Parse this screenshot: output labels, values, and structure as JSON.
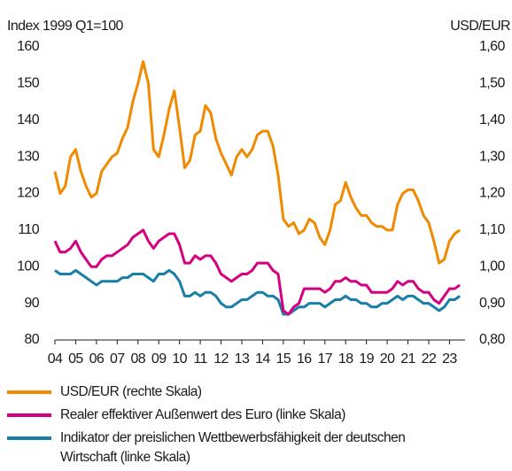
{
  "chart_data": {
    "type": "line",
    "y_label": "Index 1999 Q1=100",
    "y2_label": "USD/EUR",
    "x": [
      2004,
      2004.25,
      2004.5,
      2004.75,
      2005,
      2005.25,
      2005.5,
      2005.75,
      2006,
      2006.25,
      2006.5,
      2006.75,
      2007,
      2007.25,
      2007.5,
      2007.75,
      2008,
      2008.25,
      2008.5,
      2008.75,
      2009,
      2009.25,
      2009.5,
      2009.75,
      2010,
      2010.25,
      2010.5,
      2010.75,
      2011,
      2011.25,
      2011.5,
      2011.75,
      2012,
      2012.25,
      2012.5,
      2012.75,
      2013,
      2013.25,
      2013.5,
      2013.75,
      2014,
      2014.25,
      2014.5,
      2014.75,
      2015,
      2015.25,
      2015.5,
      2015.75,
      2016,
      2016.25,
      2016.5,
      2016.75,
      2017,
      2017.25,
      2017.5,
      2017.75,
      2018,
      2018.25,
      2018.5,
      2018.75,
      2019,
      2019.25,
      2019.5,
      2019.75,
      2020,
      2020.25,
      2020.5,
      2020.75,
      2021,
      2021.25,
      2021.5,
      2021.75,
      2022,
      2022.25,
      2022.5,
      2022.75,
      2023,
      2023.25,
      2023.5
    ],
    "series": [
      {
        "name": "USD/EUR (rechte Skala)",
        "color": "#f08a00",
        "axis": "y2",
        "values": [
          1.26,
          1.2,
          1.22,
          1.3,
          1.32,
          1.26,
          1.22,
          1.19,
          1.2,
          1.26,
          1.28,
          1.3,
          1.31,
          1.35,
          1.38,
          1.45,
          1.5,
          1.56,
          1.5,
          1.32,
          1.3,
          1.36,
          1.43,
          1.48,
          1.38,
          1.27,
          1.29,
          1.36,
          1.37,
          1.44,
          1.42,
          1.35,
          1.31,
          1.28,
          1.25,
          1.3,
          1.32,
          1.3,
          1.32,
          1.36,
          1.37,
          1.37,
          1.33,
          1.25,
          1.13,
          1.11,
          1.12,
          1.09,
          1.1,
          1.13,
          1.12,
          1.08,
          1.06,
          1.1,
          1.17,
          1.18,
          1.23,
          1.19,
          1.16,
          1.14,
          1.14,
          1.12,
          1.11,
          1.11,
          1.1,
          1.1,
          1.17,
          1.2,
          1.21,
          1.21,
          1.18,
          1.14,
          1.12,
          1.07,
          1.01,
          1.02,
          1.07,
          1.09,
          1.1
        ]
      },
      {
        "name": "Realer effektiver Außenwert des Euro (linke Skala)",
        "color": "#d4007f",
        "values": [
          107,
          104,
          104,
          105,
          107,
          104,
          102,
          100,
          100,
          102,
          103,
          103,
          104,
          105,
          106,
          108,
          109,
          110,
          107,
          105,
          107,
          108,
          109,
          109,
          106,
          101,
          101,
          103,
          102,
          103,
          103,
          101,
          98,
          97,
          96,
          97,
          98,
          98,
          99,
          101,
          101,
          101,
          99,
          98,
          88,
          87,
          89,
          90,
          94,
          94,
          94,
          94,
          93,
          94,
          96,
          96,
          97,
          96,
          96,
          95,
          95,
          93,
          93,
          93,
          93,
          94,
          96,
          95,
          96,
          96,
          94,
          93,
          93,
          91,
          90,
          92,
          94,
          94,
          95
        ]
      },
      {
        "name": "Indikator der preislichen Wettbewerbsfähigkeit der deutschen Wirtschaft (linke Skala)",
        "color": "#1a7fa8",
        "values": [
          99,
          98,
          98,
          98,
          99,
          98,
          97,
          96,
          95,
          96,
          96,
          96,
          96,
          97,
          97,
          98,
          98,
          98,
          97,
          96,
          98,
          98,
          99,
          98,
          96,
          92,
          92,
          93,
          92,
          93,
          93,
          92,
          90,
          89,
          89,
          90,
          91,
          91,
          92,
          93,
          93,
          92,
          92,
          91,
          87,
          87,
          88,
          89,
          89,
          90,
          90,
          90,
          89,
          90,
          91,
          91,
          92,
          91,
          91,
          90,
          90,
          89,
          89,
          90,
          90,
          91,
          92,
          91,
          92,
          92,
          91,
          90,
          90,
          89,
          88,
          89,
          91,
          91,
          92
        ]
      }
    ],
    "xlim": [
      2004,
      2023.75
    ],
    "xticks": [
      {
        "value": 2004,
        "label": "04"
      },
      {
        "value": 2005,
        "label": "05"
      },
      {
        "value": 2006,
        "label": "06"
      },
      {
        "value": 2007,
        "label": "07"
      },
      {
        "value": 2008,
        "label": "08"
      },
      {
        "value": 2009,
        "label": "09"
      },
      {
        "value": 2010,
        "label": "10"
      },
      {
        "value": 2011,
        "label": "11"
      },
      {
        "value": 2012,
        "label": "12"
      },
      {
        "value": 2013,
        "label": "13"
      },
      {
        "value": 2014,
        "label": "14"
      },
      {
        "value": 2015,
        "label": "15"
      },
      {
        "value": 2016,
        "label": "16"
      },
      {
        "value": 2017,
        "label": "17"
      },
      {
        "value": 2018,
        "label": "18"
      },
      {
        "value": 2019,
        "label": "19"
      },
      {
        "value": 2020,
        "label": "20"
      },
      {
        "value": 2021,
        "label": "21"
      },
      {
        "value": 2022,
        "label": "22"
      },
      {
        "value": 2023,
        "label": "23"
      }
    ],
    "ylim": [
      80,
      160
    ],
    "yticks": [
      80,
      90,
      100,
      110,
      120,
      130,
      140,
      150,
      160
    ],
    "y2lim": [
      0.8,
      1.6
    ],
    "y2ticks": [
      {
        "value": 0.8,
        "label": "0,80"
      },
      {
        "value": 0.9,
        "label": "0,90"
      },
      {
        "value": 1.0,
        "label": "1,00"
      },
      {
        "value": 1.1,
        "label": "1,10"
      },
      {
        "value": 1.2,
        "label": "1,20"
      },
      {
        "value": 1.3,
        "label": "1,30"
      },
      {
        "value": 1.4,
        "label": "1,40"
      },
      {
        "value": 1.5,
        "label": "1,50"
      },
      {
        "value": 1.6,
        "label": "1,60"
      }
    ],
    "grid": false
  }
}
